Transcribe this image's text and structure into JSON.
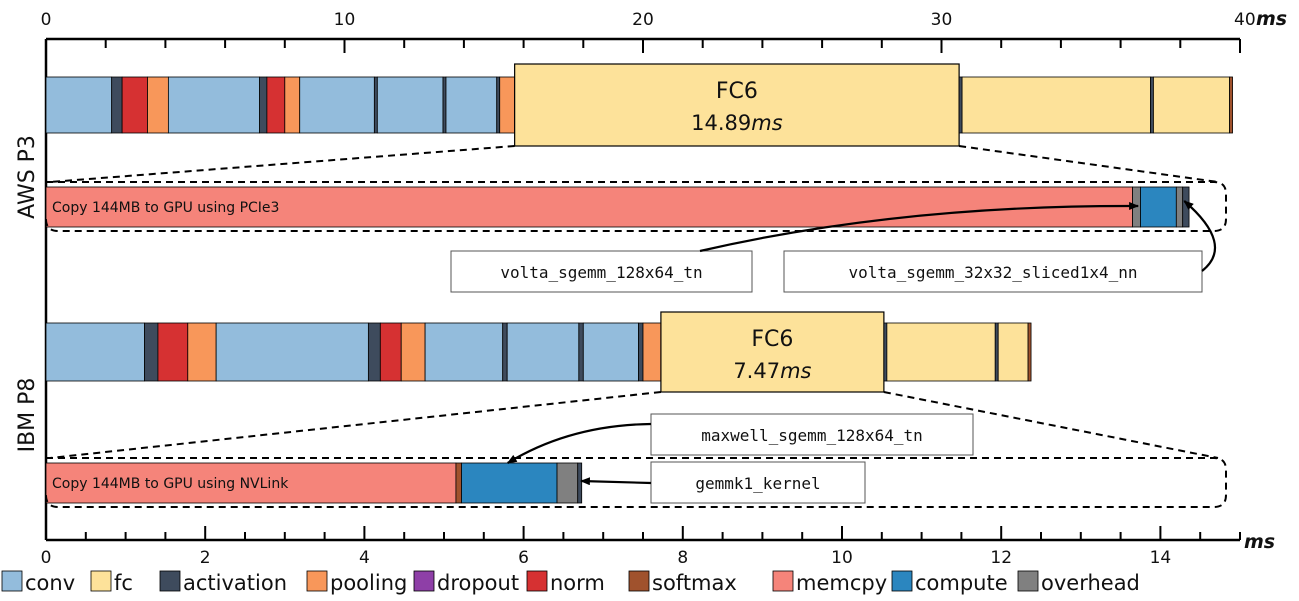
{
  "chart_data": {
    "type": "bar",
    "orientation": "horizontal-stacked-timeline",
    "top_axis": {
      "unit": "ms",
      "range": [
        0,
        40
      ],
      "ticks": [
        0,
        10,
        20,
        30,
        40
      ],
      "tick_labels": [
        "0",
        "10",
        "20",
        "30",
        "40"
      ],
      "last_label_unit": "ms"
    },
    "bottom_axis": {
      "unit": "ms",
      "range": [
        0,
        15
      ],
      "ticks": [
        0,
        2,
        4,
        6,
        8,
        10,
        12,
        14
      ],
      "tick_labels": [
        "0",
        "2",
        "4",
        "6",
        "8",
        "10",
        "12",
        "14"
      ],
      "end_label": "ms"
    },
    "legend": [
      {
        "name": "conv",
        "color": "#93bcdc"
      },
      {
        "name": "fc",
        "color": "#fde29a"
      },
      {
        "name": "activation",
        "color": "#3e4b5d"
      },
      {
        "name": "pooling",
        "color": "#f8975a"
      },
      {
        "name": "dropout",
        "color": "#8e3fa7"
      },
      {
        "name": "norm",
        "color": "#d63132"
      },
      {
        "name": "softmax",
        "color": "#a0522d"
      },
      {
        "name": "memcpy",
        "color": "#f5847a"
      },
      {
        "name": "compute",
        "color": "#2b86bf"
      },
      {
        "name": "overhead",
        "color": "#808080"
      }
    ],
    "groups": [
      {
        "label": "AWS P3",
        "layers": [
          {
            "cat": "conv",
            "start": 0,
            "end": 2.2
          },
          {
            "cat": "activation",
            "start": 2.2,
            "end": 2.55
          },
          {
            "cat": "norm",
            "start": 2.55,
            "end": 3.4
          },
          {
            "cat": "pooling",
            "start": 3.4,
            "end": 4.1
          },
          {
            "cat": "conv",
            "start": 4.1,
            "end": 7.15
          },
          {
            "cat": "activation",
            "start": 7.15,
            "end": 7.4
          },
          {
            "cat": "norm",
            "start": 7.4,
            "end": 8.0
          },
          {
            "cat": "pooling",
            "start": 8.0,
            "end": 8.5
          },
          {
            "cat": "conv",
            "start": 8.5,
            "end": 11.0
          },
          {
            "cat": "activation",
            "start": 11.0,
            "end": 11.1
          },
          {
            "cat": "conv",
            "start": 11.1,
            "end": 13.3
          },
          {
            "cat": "activation",
            "start": 13.3,
            "end": 13.4
          },
          {
            "cat": "conv",
            "start": 13.4,
            "end": 15.1
          },
          {
            "cat": "activation",
            "start": 15.1,
            "end": 15.2
          },
          {
            "cat": "pooling",
            "start": 15.2,
            "end": 15.7
          },
          {
            "cat": "fc",
            "start": 15.7,
            "end": 30.59,
            "label": "FC6",
            "time": "14.89",
            "time_unit": "ms"
          },
          {
            "cat": "activation",
            "start": 30.59,
            "end": 30.69
          },
          {
            "cat": "fc",
            "start": 30.69,
            "end": 37.0
          },
          {
            "cat": "activation",
            "start": 37.0,
            "end": 37.1
          },
          {
            "cat": "fc",
            "start": 37.1,
            "end": 39.65
          },
          {
            "cat": "softmax",
            "start": 39.65,
            "end": 39.75
          }
        ],
        "zoom": {
          "label": "Copy 144MB to GPU using PCIe3",
          "segments": [
            {
              "cat": "memcpy",
              "start": 0,
              "end": 13.65
            },
            {
              "cat": "overhead",
              "start": 13.65,
              "end": 13.75
            },
            {
              "cat": "compute",
              "start": 13.75,
              "end": 14.2
            },
            {
              "cat": "overhead",
              "start": 14.2,
              "end": 14.28
            },
            {
              "cat": "activation",
              "start": 14.28,
              "end": 14.36
            }
          ],
          "kernels": [
            "volta_sgemm_128x64_tn",
            "volta_sgemm_32x32_sliced1x4_nn"
          ]
        }
      },
      {
        "label": "IBM P8",
        "layers": [
          {
            "cat": "conv",
            "start": 0,
            "end": 3.3
          },
          {
            "cat": "activation",
            "start": 3.3,
            "end": 3.75
          },
          {
            "cat": "norm",
            "start": 3.75,
            "end": 4.75
          },
          {
            "cat": "pooling",
            "start": 4.75,
            "end": 5.7
          },
          {
            "cat": "conv",
            "start": 5.7,
            "end": 10.8
          },
          {
            "cat": "activation",
            "start": 10.8,
            "end": 11.2
          },
          {
            "cat": "norm",
            "start": 11.2,
            "end": 11.9
          },
          {
            "cat": "pooling",
            "start": 11.9,
            "end": 12.7
          },
          {
            "cat": "conv",
            "start": 12.7,
            "end": 15.3
          },
          {
            "cat": "activation",
            "start": 15.3,
            "end": 15.45
          },
          {
            "cat": "conv",
            "start": 15.45,
            "end": 17.85
          },
          {
            "cat": "activation",
            "start": 17.85,
            "end": 18.0
          },
          {
            "cat": "conv",
            "start": 18.0,
            "end": 19.85
          },
          {
            "cat": "activation",
            "start": 19.85,
            "end": 20.0
          },
          {
            "cat": "pooling",
            "start": 20.0,
            "end": 20.6
          },
          {
            "cat": "fc",
            "start": 20.6,
            "end": 28.07,
            "label": "FC6",
            "time": "7.47",
            "time_unit": "ms"
          },
          {
            "cat": "activation",
            "start": 28.07,
            "end": 28.17
          },
          {
            "cat": "fc",
            "start": 28.17,
            "end": 31.8
          },
          {
            "cat": "activation",
            "start": 31.8,
            "end": 31.9
          },
          {
            "cat": "fc",
            "start": 31.9,
            "end": 32.9
          },
          {
            "cat": "softmax",
            "start": 32.9,
            "end": 33.0
          }
        ],
        "zoom": {
          "label": "Copy 144MB to GPU using NVLink",
          "segments": [
            {
              "cat": "memcpy",
              "start": 0,
              "end": 5.15
            },
            {
              "cat": "softmax",
              "start": 5.15,
              "end": 5.22
            },
            {
              "cat": "compute",
              "start": 5.22,
              "end": 6.42
            },
            {
              "cat": "overhead",
              "start": 6.42,
              "end": 6.68
            },
            {
              "cat": "activation",
              "start": 6.68,
              "end": 6.73
            }
          ],
          "kernels": [
            "maxwell_sgemm_128x64_tn",
            "gemmk1_kernel"
          ]
        }
      }
    ]
  }
}
